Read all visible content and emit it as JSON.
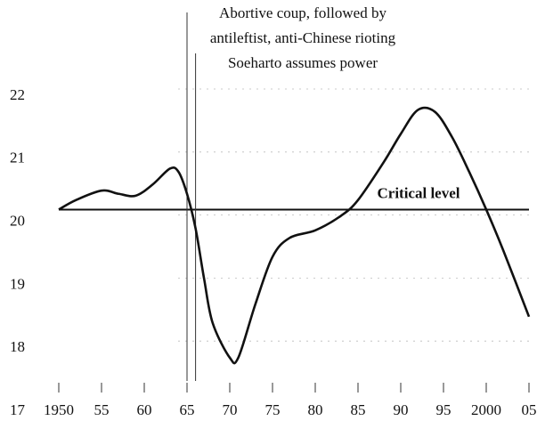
{
  "chart_data": {
    "type": "line",
    "x": [
      1950,
      1952,
      1955,
      1957,
      1959,
      1961,
      1963,
      1964,
      1965,
      1966,
      1967,
      1968,
      1970,
      1971,
      1973,
      1975,
      1977,
      1980,
      1983,
      1985,
      1988,
      1990,
      1992,
      1994,
      1996,
      1998,
      2000,
      2002,
      2005
    ],
    "values": [
      20.2,
      20.35,
      20.5,
      20.45,
      20.42,
      20.6,
      20.85,
      20.8,
      20.45,
      19.9,
      19.1,
      18.4,
      17.85,
      17.85,
      18.7,
      19.45,
      19.75,
      19.87,
      20.1,
      20.35,
      20.95,
      21.4,
      21.78,
      21.75,
      21.35,
      20.8,
      20.2,
      19.55,
      18.5
    ],
    "color": "#111111",
    "xlim": [
      1950,
      2005
    ],
    "xticks": [
      1950,
      {
        "value": 1955,
        "label": "55"
      },
      {
        "value": 1960,
        "label": "60"
      },
      {
        "value": 1965,
        "label": "65"
      },
      {
        "value": 1970,
        "label": "70"
      },
      {
        "value": 1975,
        "label": "75"
      },
      {
        "value": 1980,
        "label": "80"
      },
      {
        "value": 1985,
        "label": "85"
      },
      {
        "value": 1990,
        "label": "90"
      },
      {
        "value": 1995,
        "label": "95"
      },
      2000,
      {
        "value": 2005,
        "label": "05"
      }
    ],
    "ylim": [
      17,
      22.5
    ],
    "yticks": [
      17,
      18,
      19,
      20,
      21,
      22
    ],
    "grid": true,
    "critical_level": {
      "value": 20.2,
      "label": "Critical level"
    },
    "events": [
      {
        "x": 1965,
        "lines": [
          "Abortive coup, followed by",
          "antileftist, anti-Chinese rioting"
        ]
      },
      {
        "x": 1966,
        "lines": [
          "Soeharto assumes power"
        ]
      }
    ]
  }
}
